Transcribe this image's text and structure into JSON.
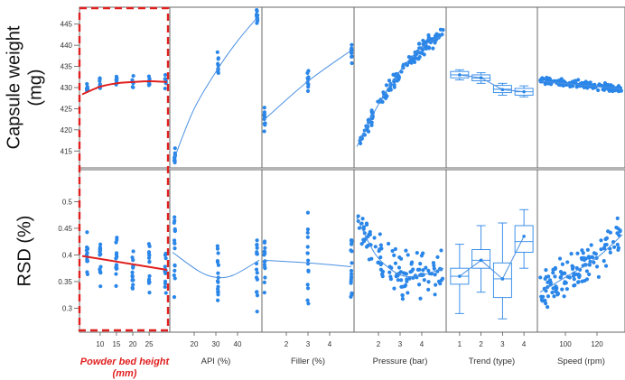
{
  "chart_data": {
    "type": "scatter",
    "rows": [
      {
        "id": "cw",
        "ylabel_lines": [
          "Capsule weight",
          "(mg)"
        ],
        "yticks": [
          "415",
          "420",
          "425",
          "430",
          "435",
          "440",
          "445"
        ],
        "ylim": [
          411,
          449
        ]
      },
      {
        "id": "rsd",
        "ylabel_lines": [
          "RSD (%)"
        ],
        "yticks": [
          "0.3",
          "0.35",
          "0.4",
          "0.45",
          "0.5"
        ],
        "ylim": [
          0.255,
          0.56
        ]
      }
    ],
    "columns": [
      {
        "id": "pbh",
        "xlabel_lines": [
          "Powder bed height",
          "(mm)"
        ],
        "highlight": true,
        "xticks": [
          "10",
          "15",
          "20",
          "25"
        ],
        "xlim": [
          4.5,
          30.5
        ],
        "xlevels": [
          6,
          10,
          15,
          20,
          25,
          30
        ],
        "cw": {
          "kind": "levels",
          "center": [
            429.5,
            431,
            431.6,
            431.3,
            431.5,
            431.8
          ],
          "spread": 2.2,
          "n": 8,
          "fit": [
            [
              4.5,
              428.4
            ],
            [
              10,
              430.2
            ],
            [
              15,
              431.0
            ],
            [
              20,
              431.3
            ],
            [
              25,
              431.5
            ],
            [
              30.5,
              431.3
            ]
          ]
        },
        "rsd": {
          "kind": "levels",
          "center": [
            0.395,
            0.39,
            0.385,
            0.38,
            0.378,
            0.375
          ],
          "spread": 0.06,
          "n": 14,
          "fit": [
            [
              4.5,
              0.398
            ],
            [
              30.5,
              0.372
            ]
          ]
        }
      },
      {
        "id": "api",
        "xlabel_lines": [
          "API (%)"
        ],
        "xticks": [
          "20",
          "30",
          "40"
        ],
        "xlim": [
          10,
          50
        ],
        "xlevels": [
          11,
          31,
          49
        ],
        "cw": {
          "kind": "levels",
          "center": [
            413.5,
            434.5,
            446.5
          ],
          "spread": 3.5,
          "n": 10,
          "fit": [
            [
              11,
              413.5
            ],
            [
              20,
              425
            ],
            [
              31,
              434.5
            ],
            [
              40,
              441
            ],
            [
              49,
              446.5
            ]
          ]
        },
        "rsd": {
          "kind": "levels",
          "center": [
            0.4,
            0.37,
            0.39
          ],
          "spread": 0.09,
          "n": 16,
          "fit": [
            [
              10,
              0.405
            ],
            [
              22,
              0.37
            ],
            [
              30,
              0.358
            ],
            [
              38,
              0.362
            ],
            [
              50,
              0.39
            ]
          ]
        }
      },
      {
        "id": "filler",
        "xlabel_lines": [
          "Filler (%)"
        ],
        "xticks": [
          "2",
          "3",
          "4"
        ],
        "xlim": [
          1,
          5
        ],
        "xlevels": [
          1,
          3,
          5
        ],
        "cw": {
          "kind": "levels",
          "center": [
            422.5,
            431.5,
            438.5
          ],
          "spread": 3,
          "n": 10,
          "fit": [
            [
              1,
              422.5
            ],
            [
              3,
              431.5
            ],
            [
              5,
              438.8
            ]
          ]
        },
        "rsd": {
          "kind": "levels",
          "center": [
            0.39,
            0.385,
            0.38
          ],
          "spread": 0.09,
          "n": 16,
          "fit": [
            [
              1,
              0.39
            ],
            [
              3,
              0.385
            ],
            [
              5,
              0.378
            ]
          ]
        }
      },
      {
        "id": "pressure",
        "xlabel_lines": [
          "Pressure (bar)"
        ],
        "xticks": [
          "2",
          "3",
          "4"
        ],
        "xlim": [
          1,
          5
        ],
        "xlevels": [],
        "cw": {
          "kind": "cloud",
          "n": 130,
          "noise": 1.3,
          "fit": [
            [
              1,
              416
            ],
            [
              2,
              426
            ],
            [
              3,
              434
            ],
            [
              4,
              439.5
            ],
            [
              5,
              442.5
            ]
          ]
        },
        "rsd": {
          "kind": "cloud",
          "n": 120,
          "noise": 0.032,
          "fit": [
            [
              1,
              0.47
            ],
            [
              1.8,
              0.405
            ],
            [
              2.5,
              0.375
            ],
            [
              3.2,
              0.36
            ],
            [
              4,
              0.362
            ],
            [
              5,
              0.375
            ]
          ]
        }
      },
      {
        "id": "trend",
        "xlabel_lines": [
          "Trend (type)"
        ],
        "xticks": [
          "1",
          "2",
          "3",
          "4"
        ],
        "xlim": [
          0.5,
          4.5
        ],
        "xlevels": [],
        "cw": {
          "kind": "box",
          "boxes": [
            {
              "x": 1,
              "q1": 432.3,
              "med": 433,
              "q3": 433.8,
              "lo": 431.8,
              "hi": 434.2,
              "mean": 433
            },
            {
              "x": 2,
              "q1": 431.6,
              "med": 432.2,
              "q3": 433,
              "lo": 431,
              "hi": 433.5,
              "mean": 432.3
            },
            {
              "x": 3,
              "q1": 428.8,
              "med": 429.6,
              "q3": 430.5,
              "lo": 428.2,
              "hi": 431,
              "mean": 429.5
            },
            {
              "x": 4,
              "q1": 428.2,
              "med": 429,
              "q3": 429.8,
              "lo": 427.8,
              "hi": 430.4,
              "mean": 429
            }
          ]
        },
        "rsd": {
          "kind": "box",
          "boxes": [
            {
              "x": 1,
              "q1": 0.345,
              "med": 0.36,
              "q3": 0.375,
              "lo": 0.29,
              "hi": 0.42,
              "mean": 0.36
            },
            {
              "x": 2,
              "q1": 0.375,
              "med": 0.39,
              "q3": 0.41,
              "lo": 0.33,
              "hi": 0.455,
              "mean": 0.39
            },
            {
              "x": 3,
              "q1": 0.32,
              "med": 0.355,
              "q3": 0.385,
              "lo": 0.28,
              "hi": 0.46,
              "mean": 0.355
            },
            {
              "x": 4,
              "q1": 0.405,
              "med": 0.425,
              "q3": 0.455,
              "lo": 0.375,
              "hi": 0.485,
              "mean": 0.435
            }
          ]
        }
      },
      {
        "id": "speed",
        "xlabel_lines": [
          "Speed (rpm)"
        ],
        "xticks": [
          "100",
          "120"
        ],
        "xlim": [
          84,
          136
        ],
        "xlevels": [],
        "cw": {
          "kind": "cloud",
          "n": 160,
          "noise": 0.7,
          "fit": [
            [
              84,
              431.5
            ],
            [
              110,
              430.6
            ],
            [
              136,
              429.6
            ]
          ]
        },
        "rsd": {
          "kind": "cloud",
          "n": 130,
          "noise": 0.03,
          "fit": [
            [
              84,
              0.33
            ],
            [
              100,
              0.358
            ],
            [
              120,
              0.395
            ],
            [
              136,
              0.438
            ]
          ]
        }
      }
    ],
    "colors": {
      "points": "#2a86e8",
      "fit": "#4a90e2",
      "highlight": "#e0201f",
      "frame": "#6a6a6a"
    }
  }
}
